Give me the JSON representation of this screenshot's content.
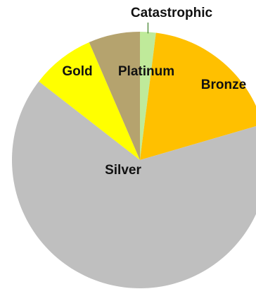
{
  "chart_data": {
    "type": "pie",
    "title": "",
    "slices": [
      {
        "label": "Catastrophic",
        "value": 2.0,
        "color": "#BFEA9A"
      },
      {
        "label": "Bronze",
        "value": 18.5,
        "color": "#FFC000"
      },
      {
        "label": "Silver",
        "value": 65.0,
        "color": "#BFBFBF"
      },
      {
        "label": "Gold",
        "value": 8.0,
        "color": "#FFFF00"
      },
      {
        "label": "Platinum",
        "value": 6.5,
        "color": "#B5A36E"
      }
    ],
    "legend": "none",
    "leader_line_color": "#3A7D23"
  }
}
